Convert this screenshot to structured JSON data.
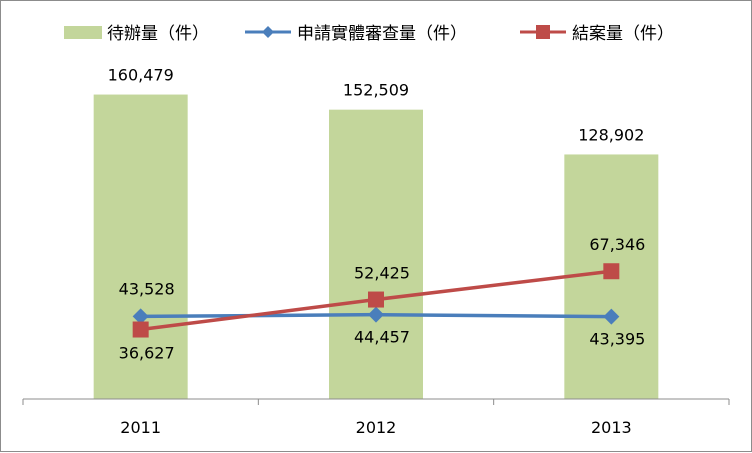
{
  "chart_data": {
    "type": "bar",
    "categories": [
      "2011",
      "2012",
      "2013"
    ],
    "ylim": [
      0,
      175000
    ],
    "grid": false,
    "legend_position": "top",
    "series": [
      {
        "name": "待辦量（件）",
        "type": "bar",
        "color": "#c3d69b",
        "values": [
          160479,
          152509,
          128902
        ],
        "labels": [
          "160,479",
          "152,509",
          "128,902"
        ]
      },
      {
        "name": "申請實體審查量（件）",
        "type": "line",
        "marker": "diamond",
        "color": "#4a7ebb",
        "values": [
          43528,
          44457,
          43395
        ],
        "labels": [
          "43,528",
          "44,457",
          "43,395"
        ]
      },
      {
        "name": "結案量（件）",
        "type": "line",
        "marker": "square",
        "color": "#be4b48",
        "values": [
          36627,
          52425,
          67346
        ],
        "labels": [
          "36,627",
          "52,425",
          "67,346"
        ]
      }
    ]
  }
}
